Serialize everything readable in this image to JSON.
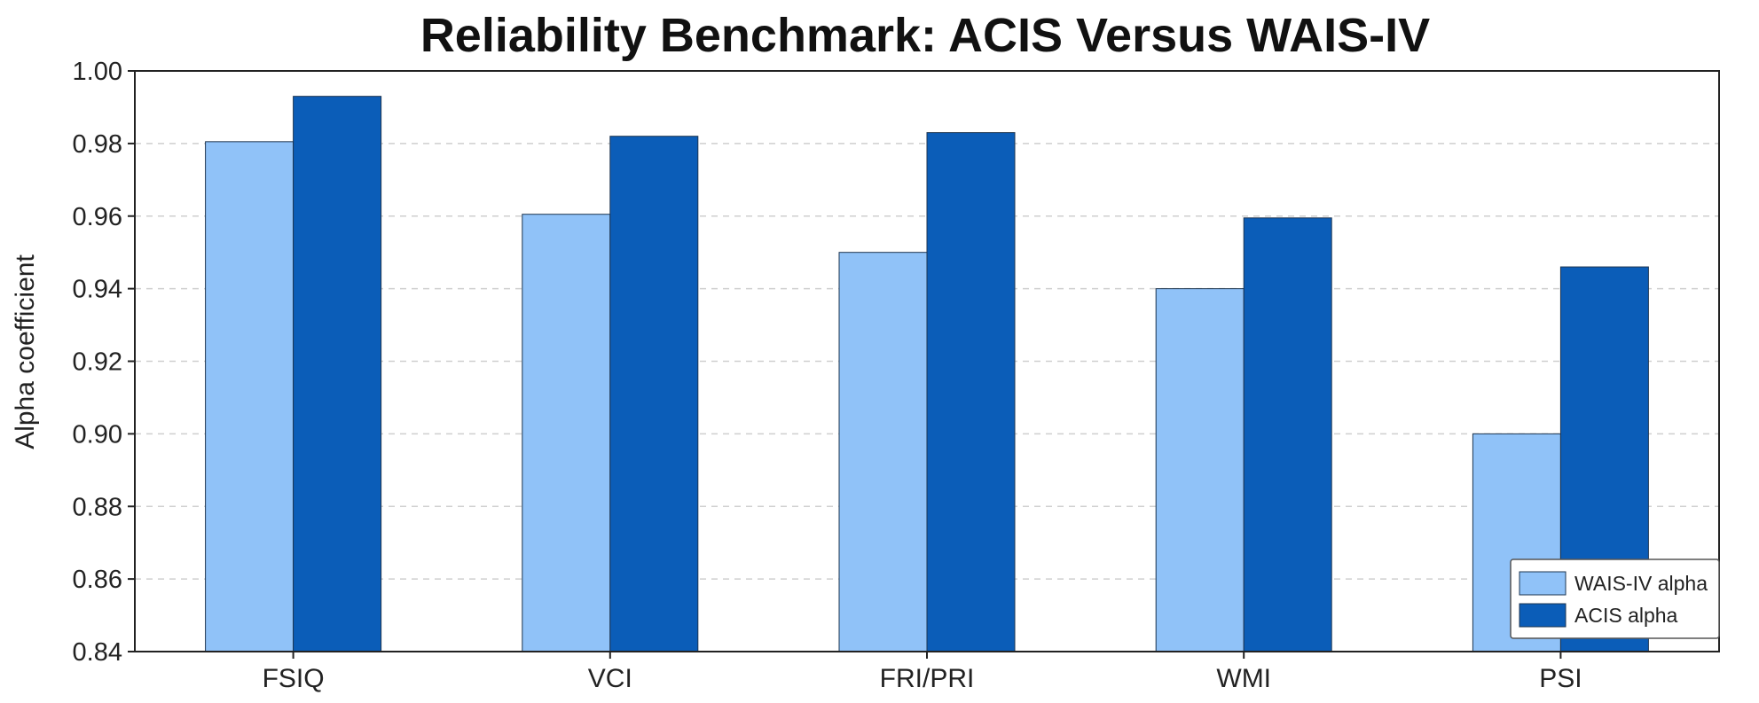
{
  "chart_data": {
    "type": "bar",
    "title": "Reliability Benchmark: ACIS Versus WAIS-IV",
    "xlabel": "",
    "ylabel": "Alpha coefficient",
    "categories": [
      "FSIQ",
      "VCI",
      "FRI/PRI",
      "WMI",
      "PSI"
    ],
    "series": [
      {
        "name": "WAIS-IV alpha",
        "color": "#90c2f8",
        "values": [
          0.9805,
          0.9605,
          0.95,
          0.94,
          0.9
        ]
      },
      {
        "name": "ACIS alpha",
        "color": "#0b5db8",
        "values": [
          0.993,
          0.982,
          0.983,
          0.9595,
          0.946
        ]
      }
    ],
    "ylim": [
      0.84,
      1.0
    ],
    "yticks": [
      "0.84",
      "0.86",
      "0.88",
      "0.90",
      "0.92",
      "0.94",
      "0.96",
      "0.98",
      "1.00"
    ],
    "grid": true,
    "legend_position": "bottom-right"
  }
}
